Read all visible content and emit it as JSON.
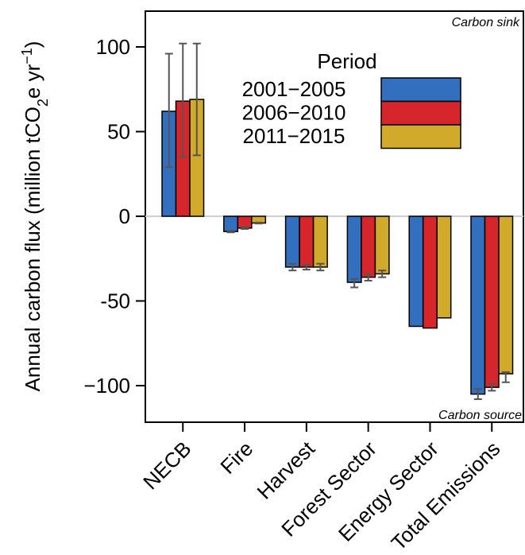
{
  "chart_data": {
    "type": "bar",
    "ylabel_main": "Annual carbon flux (million tCO",
    "ylabel_sub": "2",
    "ylabel_mid": "e yr",
    "ylabel_sup": "−1",
    "ylabel_end": ")",
    "ylim": [
      -120,
      120
    ],
    "yticks": [
      100,
      50,
      0,
      -50,
      -100
    ],
    "ytick_labels": [
      "100",
      "50",
      "0",
      "-50",
      "−100"
    ],
    "categories": [
      "NECB",
      "Fire",
      "Harvest",
      "Forest Sector",
      "Energy Sector",
      "Total Emissions"
    ],
    "series": [
      {
        "name": "2001−2005",
        "color": "#3270bf",
        "values": [
          62,
          -9,
          -30,
          -39,
          -65,
          -105
        ],
        "err_low": [
          29,
          -9.5,
          -32,
          -42,
          -65,
          -108
        ],
        "err_high": [
          96,
          -8.5,
          -28,
          -37,
          -65,
          -102
        ]
      },
      {
        "name": "2006−2010",
        "color": "#d7262b",
        "values": [
          68,
          -7,
          -30,
          -36,
          -66,
          -101
        ],
        "err_low": [
          35,
          -7.5,
          -31.5,
          -38,
          -66,
          -103
        ],
        "err_high": [
          102,
          -6.5,
          -28.5,
          -34,
          -66,
          -99
        ]
      },
      {
        "name": "2011−2015",
        "color": "#d1aa2b",
        "values": [
          69,
          -4,
          -30,
          -34,
          -60,
          -93
        ],
        "err_low": [
          36,
          -4.3,
          -32,
          -36,
          -60,
          -98
        ],
        "err_high": [
          102,
          -3.7,
          -28,
          -32,
          -60,
          -92
        ]
      }
    ],
    "legend_title": "Period",
    "legend_position": "top-right",
    "annotations": {
      "top": "Carbon sink",
      "bottom": "Carbon source"
    },
    "grid": false
  }
}
